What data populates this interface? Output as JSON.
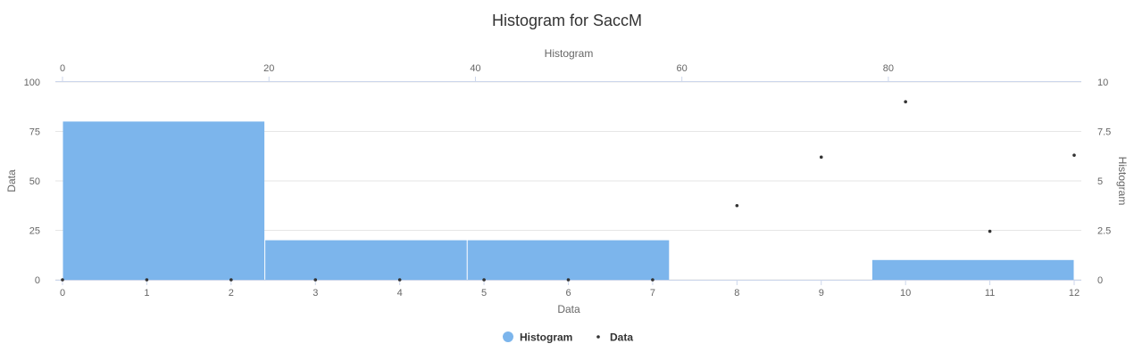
{
  "chart_data": {
    "type": "bar",
    "title": "Histogram for SaccM",
    "colors": {
      "histogram": "#7cb5ec",
      "data": "#333333",
      "grid": "#e6e6e6"
    },
    "axes": {
      "x_bottom": {
        "title": "Data",
        "range": [
          0,
          12
        ],
        "ticks": [
          "0",
          "1",
          "2",
          "3",
          "4",
          "5",
          "6",
          "7",
          "8",
          "9",
          "10",
          "11",
          "12"
        ]
      },
      "x_top": {
        "title": "Histogram",
        "range": [
          0,
          98
        ],
        "ticks": [
          "0",
          "20",
          "40",
          "60",
          "80"
        ]
      },
      "y_left": {
        "title": "Data",
        "range": [
          0,
          100
        ],
        "ticks": [
          "0",
          "25",
          "50",
          "75",
          "100"
        ]
      },
      "y_right": {
        "title": "Histogram",
        "range": [
          0,
          10
        ],
        "ticks": [
          "0",
          "2.5",
          "5",
          "7.5",
          "10"
        ]
      }
    },
    "series": [
      {
        "name": "Histogram",
        "type": "histogram",
        "bins": [
          {
            "x0": 0,
            "x1": 2.4,
            "value": 8
          },
          {
            "x0": 2.4,
            "x1": 4.8,
            "value": 2
          },
          {
            "x0": 4.8,
            "x1": 7.2,
            "value": 2
          },
          {
            "x0": 7.2,
            "x1": 9.6,
            "value": 0
          },
          {
            "x0": 9.6,
            "x1": 12,
            "value": 1
          }
        ]
      },
      {
        "name": "Data",
        "type": "scatter",
        "points": [
          {
            "x": 0,
            "y": 0
          },
          {
            "x": 1,
            "y": 0
          },
          {
            "x": 2,
            "y": 0
          },
          {
            "x": 3,
            "y": 0
          },
          {
            "x": 4,
            "y": 0
          },
          {
            "x": 5,
            "y": 0
          },
          {
            "x": 6,
            "y": 0
          },
          {
            "x": 7,
            "y": 0
          },
          {
            "x": 8,
            "y": 37.5
          },
          {
            "x": 9,
            "y": 62
          },
          {
            "x": 10,
            "y": 90
          },
          {
            "x": 11,
            "y": 24.5
          },
          {
            "x": 12,
            "y": 63
          }
        ]
      }
    ],
    "legend": {
      "placement": "bottom-center",
      "items": [
        "Histogram",
        "Data"
      ]
    }
  }
}
